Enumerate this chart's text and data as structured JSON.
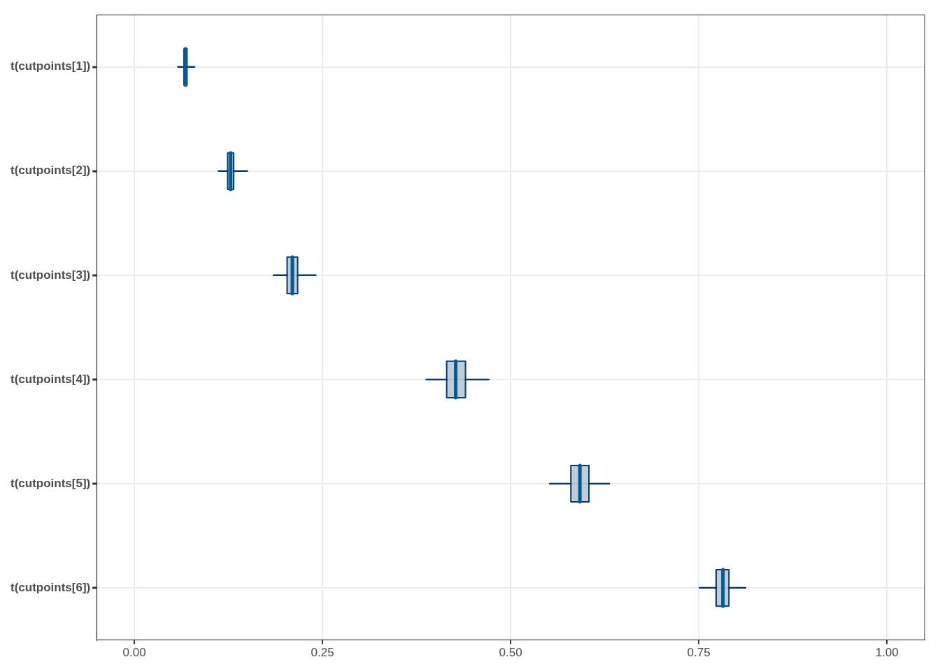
{
  "chart_data": {
    "type": "box",
    "orientation": "horizontal",
    "categories": [
      "t(cutpoints[1])",
      "t(cutpoints[2])",
      "t(cutpoints[3])",
      "t(cutpoints[4])",
      "t(cutpoints[5])",
      "t(cutpoints[6])"
    ],
    "boxes": [
      {
        "low": 0.058,
        "q1": 0.066,
        "median": 0.068,
        "q3": 0.07,
        "high": 0.08
      },
      {
        "low": 0.112,
        "q1": 0.124,
        "median": 0.128,
        "q3": 0.132,
        "high": 0.15
      },
      {
        "low": 0.185,
        "q1": 0.203,
        "median": 0.21,
        "q3": 0.217,
        "high": 0.241
      },
      {
        "low": 0.388,
        "q1": 0.415,
        "median": 0.427,
        "q3": 0.44,
        "high": 0.471
      },
      {
        "low": 0.552,
        "q1": 0.58,
        "median": 0.592,
        "q3": 0.604,
        "high": 0.631
      },
      {
        "low": 0.751,
        "q1": 0.773,
        "median": 0.782,
        "q3": 0.79,
        "high": 0.812
      }
    ],
    "color": "#03396c",
    "xlim": [
      -0.05,
      1.05
    ],
    "xticks": [
      {
        "value": 0,
        "label": "0.00"
      },
      {
        "value": 0.25,
        "label": "0.25"
      },
      {
        "value": 0.5,
        "label": "0.50"
      },
      {
        "value": 0.75,
        "label": "0.75"
      },
      {
        "value": 1,
        "label": "1.00"
      }
    ],
    "grid": true
  }
}
